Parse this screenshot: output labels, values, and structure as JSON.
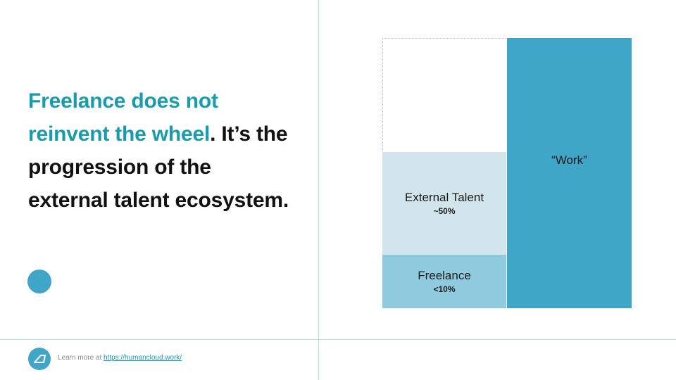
{
  "headline": {
    "accent_text": "Freelance does not reinvent the wheel",
    "rest_text": ". It’s the progression of the external talent ecosystem."
  },
  "diagram": {
    "external_talent": {
      "label": "External Talent",
      "value": "~50%"
    },
    "freelance": {
      "label": "Freelance",
      "value": "<10%"
    },
    "work": {
      "label": "“Work”"
    }
  },
  "footer": {
    "prefix": "Learn more at ",
    "link_text": "https://humancloud.work/"
  },
  "colors": {
    "accent": "#1a9bad",
    "work": "#3fa6c7",
    "freelance": "#8ecbde",
    "external_talent": "#d3e5ec"
  },
  "icons": {
    "footer_logo": "humancloud-logo-icon"
  }
}
